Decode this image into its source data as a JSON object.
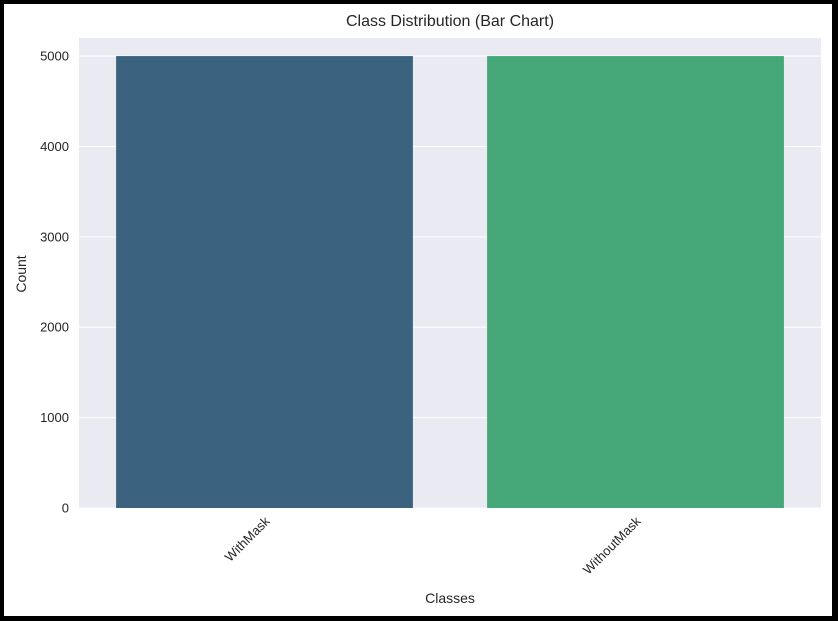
{
  "chart_data": {
    "type": "bar",
    "title": "Class Distribution (Bar Chart)",
    "xlabel": "Classes",
    "ylabel": "Count",
    "categories": [
      "WithMask",
      "WithoutMask"
    ],
    "values": [
      5000,
      5000
    ],
    "ylim": [
      0,
      5200
    ],
    "yticks": [
      0,
      1000,
      2000,
      3000,
      4000,
      5000
    ],
    "ytick_labels": [
      "0",
      "1000",
      "2000",
      "3000",
      "4000",
      "5000"
    ],
    "xtick_rotation_deg": 45,
    "colors": [
      "#3b637f",
      "#46a778"
    ],
    "plot_background": "#eaeaf2",
    "grid_color": "#ffffff",
    "grid": true
  }
}
